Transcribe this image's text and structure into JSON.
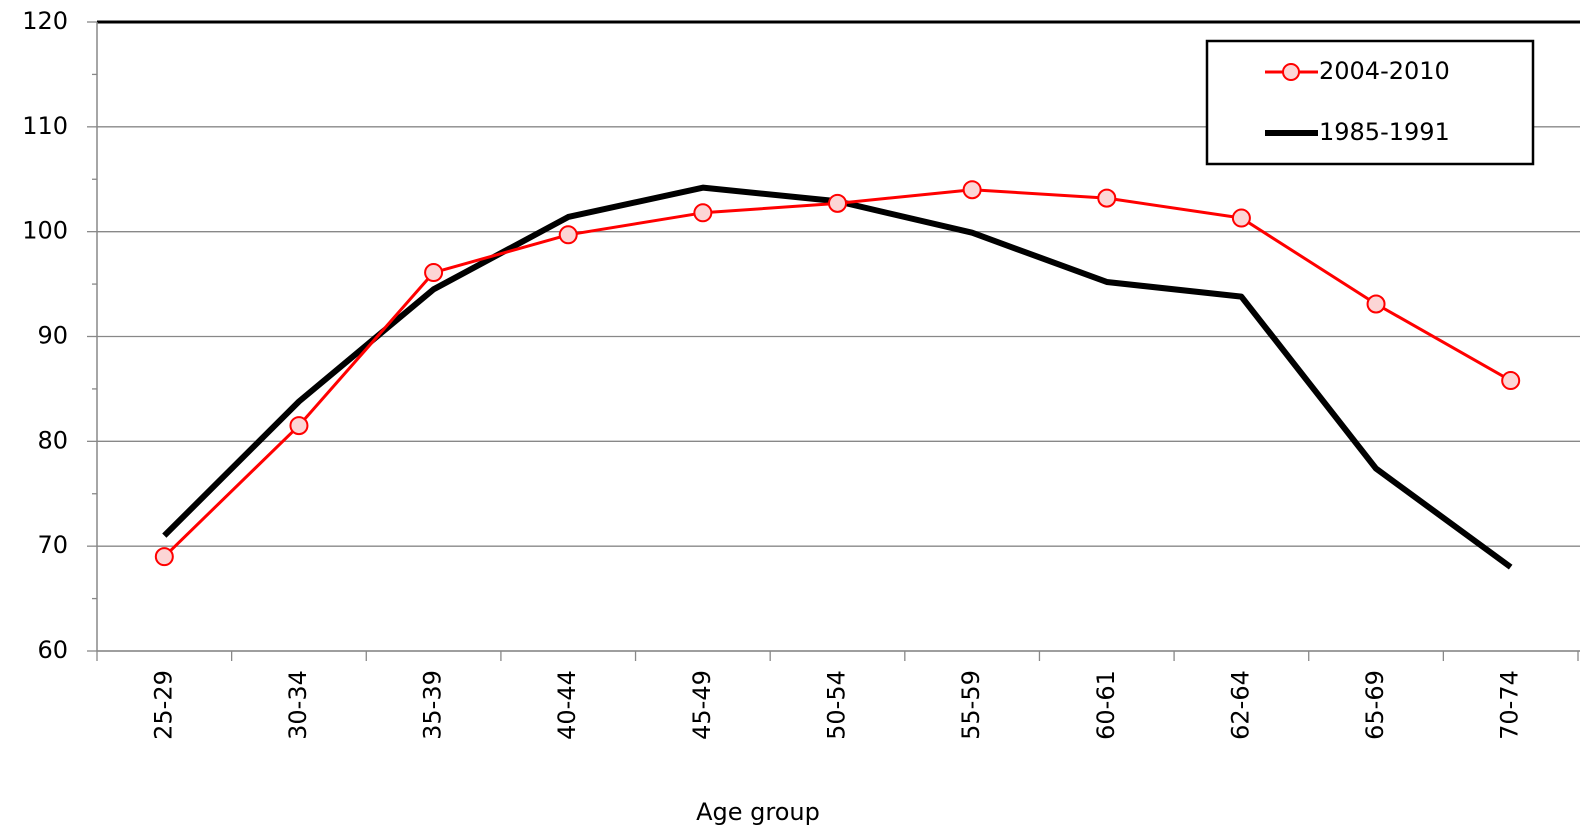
{
  "chart_data": {
    "type": "line",
    "x_label": "Age group",
    "categories": [
      "25-29",
      "30-34",
      "35-39",
      "40-44",
      "45-49",
      "50-54",
      "55-59",
      "60-61",
      "62-64",
      "65-69",
      "70-74"
    ],
    "series": [
      {
        "name": "2004-2010",
        "color": "#ff0000",
        "marker": "circle",
        "values": [
          69.0,
          81.5,
          96.1,
          99.7,
          101.8,
          102.7,
          104.0,
          103.2,
          101.3,
          93.1,
          85.8
        ]
      },
      {
        "name": "1985-1991",
        "color": "#000000",
        "values": [
          71.0,
          83.8,
          94.5,
          101.4,
          104.2,
          102.9,
          99.9,
          95.2,
          93.8,
          77.4,
          68.0
        ]
      }
    ],
    "ylim": [
      60,
      120
    ],
    "yticks": [
      60,
      70,
      80,
      90,
      100,
      110,
      120
    ],
    "grid": true,
    "legend": "upper right"
  }
}
